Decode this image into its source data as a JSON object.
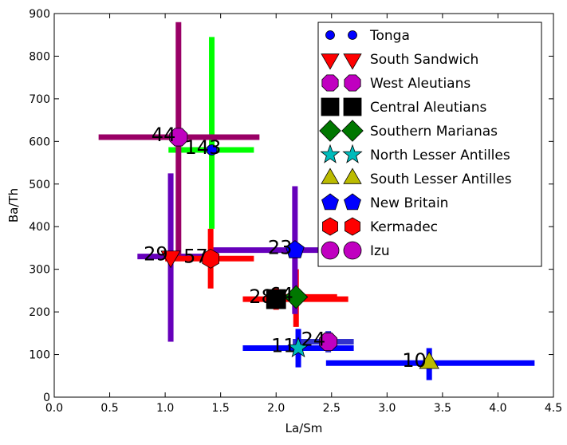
{
  "chart_data": {
    "type": "scatter",
    "xlabel": "La/Sm",
    "ylabel": "Ba/Th",
    "xlim": [
      0,
      4.5
    ],
    "ylim": [
      0,
      900
    ],
    "x_ticks": [
      0.0,
      0.5,
      1.0,
      1.5,
      2.0,
      2.5,
      3.0,
      3.5,
      4.0,
      4.5
    ],
    "x_tick_labels": [
      "0.0",
      "0.5",
      "1.0",
      "1.5",
      "2.0",
      "2.5",
      "3.0",
      "3.5",
      "4.0",
      "4.5"
    ],
    "y_ticks": [
      0,
      100,
      200,
      300,
      400,
      500,
      600,
      700,
      800,
      900
    ],
    "y_tick_labels": [
      "0",
      "100",
      "200",
      "300",
      "400",
      "500",
      "600",
      "700",
      "800",
      "900"
    ],
    "grid": false,
    "legend_position": "top-right",
    "series": [
      {
        "name": "Tonga",
        "marker": "circle",
        "color": "#0000ff",
        "points": [
          {
            "x": 1.42,
            "y": 580,
            "xerr": [
              1.03,
              1.8
            ],
            "yerr": [
              395,
              845
            ],
            "err_color": "#00ff00",
            "label": "143"
          }
        ]
      },
      {
        "name": "South Sandwich",
        "marker": "triangle-down",
        "color": "#ff0000",
        "points": [
          {
            "x": 1.05,
            "y": 330,
            "xerr": [
              0.75,
              1.45
            ],
            "yerr": [
              130,
              525
            ],
            "err_color": "#6600bb",
            "label": "29"
          }
        ]
      },
      {
        "name": "West Aleutians",
        "marker": "octagon",
        "color": "#c000c0",
        "points": [
          {
            "x": 1.12,
            "y": 610,
            "xerr": [
              0.4,
              1.85
            ],
            "yerr": [
              330,
              880
            ],
            "err_color": "#990066",
            "label": "44"
          },
          {
            "x": 2.47,
            "y": 130,
            "xerr": [
              2.15,
              2.7
            ],
            "yerr": [
              105,
              155
            ],
            "err_color": "#3333cc",
            "label": "24"
          }
        ]
      },
      {
        "name": "Central Aleutians",
        "marker": "square",
        "color": "#000000",
        "points": [
          {
            "x": 2.0,
            "y": 230,
            "xerr": [
              1.7,
              2.65
            ],
            "yerr": [
              205,
              255
            ],
            "err_color": "#ff0000",
            "label": "28"
          }
        ]
      },
      {
        "name": "Southern Marianas",
        "marker": "diamond",
        "color": "#007700",
        "points": [
          {
            "x": 2.18,
            "y": 235,
            "xerr": [
              1.95,
              2.55
            ],
            "yerr": [
              165,
              300
            ],
            "err_color": "#ff0000",
            "label": "64"
          }
        ]
      },
      {
        "name": "North Lesser Antilles",
        "marker": "star",
        "color": "#00bbbb",
        "points": [
          {
            "x": 2.2,
            "y": 115,
            "xerr": [
              1.7,
              2.7
            ],
            "yerr": [
              70,
              160
            ],
            "err_color": "#0000ff",
            "label": "11"
          }
        ]
      },
      {
        "name": "South Lesser Antilles",
        "marker": "triangle-up",
        "color": "#bbbb00",
        "points": [
          {
            "x": 3.38,
            "y": 80,
            "xerr": [
              2.45,
              4.33
            ],
            "yerr": [
              40,
              115
            ],
            "err_color": "#0000ff",
            "label": "10"
          }
        ]
      },
      {
        "name": "New Britain",
        "marker": "pentagon",
        "color": "#0000ff",
        "points": [
          {
            "x": 2.17,
            "y": 345,
            "xerr": [
              1.42,
              2.87
            ],
            "yerr": [
              195,
              495
            ],
            "err_color": "#6600bb",
            "label": "23"
          }
        ]
      },
      {
        "name": "Kermadec",
        "marker": "hexagon",
        "color": "#ff0000",
        "points": [
          {
            "x": 1.41,
            "y": 325,
            "xerr": [
              1.0,
              1.8
            ],
            "yerr": [
              255,
              395
            ],
            "err_color": "#ff0000",
            "label": "57"
          }
        ]
      },
      {
        "name": "Izu",
        "marker": "circle-large",
        "color": "#c000c0",
        "points": []
      }
    ]
  }
}
